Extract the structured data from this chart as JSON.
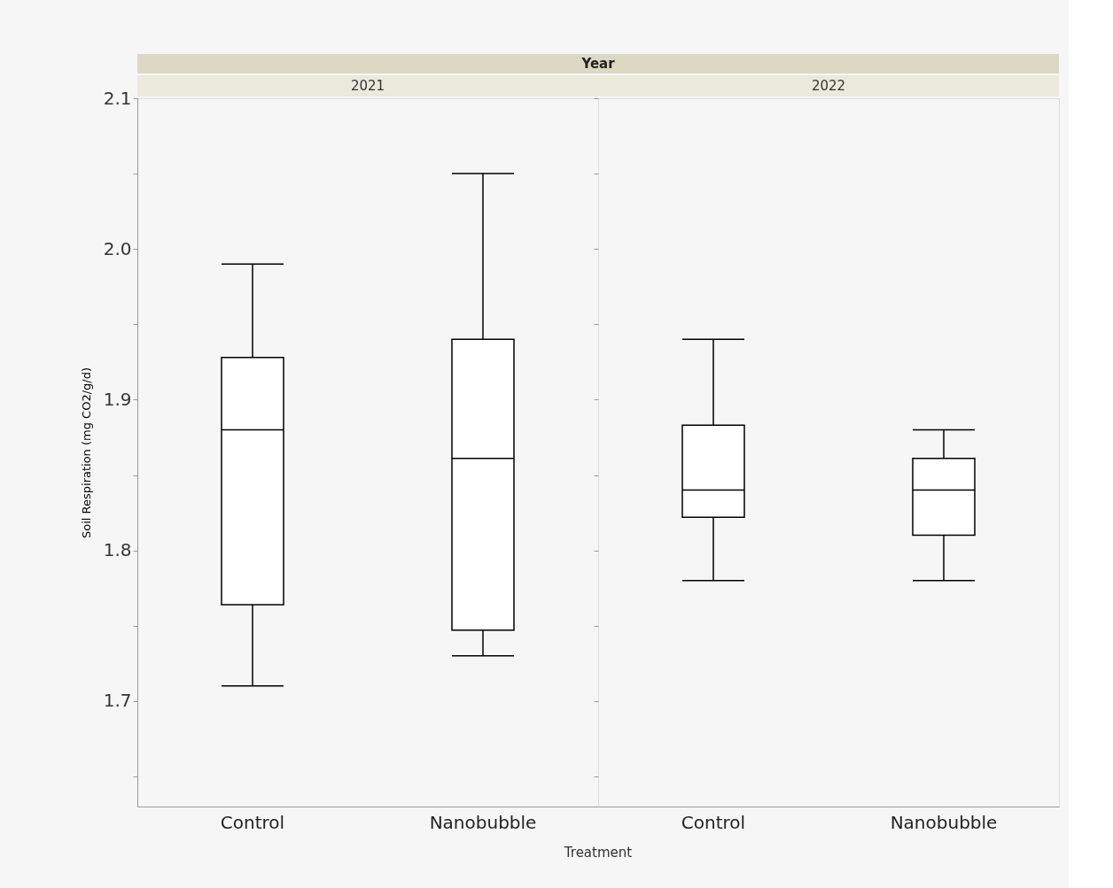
{
  "chart_data": [
    {
      "type": "box",
      "title": "2021",
      "annotations": [
        "Year"
      ],
      "xlabel": "Treatment",
      "ylabel": "Soil Respiration (mg CO2/g/d)",
      "categories": [
        "Control",
        "Nanobubble"
      ],
      "boxes": [
        {
          "low": 1.71,
          "q1": 1.764,
          "median": 1.88,
          "q3": 1.928,
          "high": 1.99
        },
        {
          "low": 1.73,
          "q1": 1.747,
          "median": 1.861,
          "q3": 1.94,
          "high": 2.05
        }
      ],
      "ylim": [
        1.63,
        2.1
      ],
      "yticks": [
        {
          "value": 1.65,
          "label": null
        },
        {
          "value": 1.7,
          "label": "1.7"
        },
        {
          "value": 1.75,
          "label": null
        },
        {
          "value": 1.8,
          "label": "1.8"
        },
        {
          "value": 1.85,
          "label": null
        },
        {
          "value": 1.9,
          "label": "1.9"
        },
        {
          "value": 1.95,
          "label": null
        },
        {
          "value": 2.0,
          "label": "2.0"
        },
        {
          "value": 2.05,
          "label": null
        },
        {
          "value": 2.1,
          "label": "2.1"
        }
      ],
      "grid": false
    },
    {
      "type": "box",
      "title": "2022",
      "categories": [
        "Control",
        "Nanobubble"
      ],
      "boxes": [
        {
          "low": 1.78,
          "q1": 1.822,
          "median": 1.84,
          "q3": 1.883,
          "high": 1.94
        },
        {
          "low": 1.78,
          "q1": 1.81,
          "median": 1.84,
          "q3": 1.861,
          "high": 1.88
        }
      ],
      "ylim": [
        1.63,
        2.1
      ],
      "yticks": [
        1.65,
        1.7,
        1.75,
        1.8,
        1.85,
        1.9,
        1.95,
        2.0,
        2.05,
        2.1
      ],
      "tick_labels": "x",
      "grid": false
    }
  ]
}
